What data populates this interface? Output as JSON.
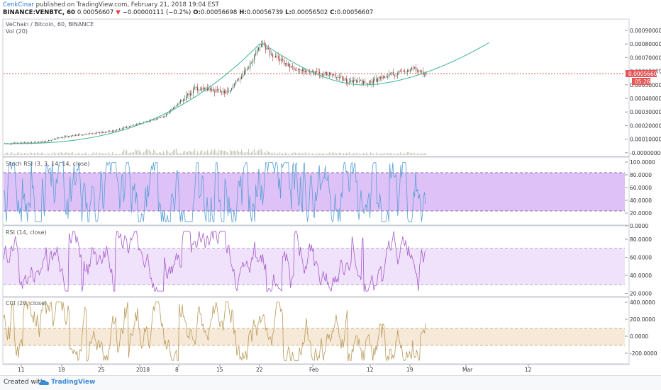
{
  "header": {
    "author": "CenkCinar",
    "published_text": "published on TradingView.com, February 21, 2018 19:04 EST",
    "symbol": "BINANCE:VENBTC, 60",
    "last": "0.00056607",
    "change": "−0.00000111 (−0.2%)",
    "ohlc": [
      {
        "k": "O:",
        "v": "0.00056698"
      },
      {
        "k": "H:",
        "v": "0.00056739"
      },
      {
        "k": "L:",
        "v": "0.00056502"
      },
      {
        "k": "C:",
        "v": "0.00056607"
      }
    ]
  },
  "panes": {
    "main_title": "VeChain / Bitcoin, 60, BINANCE",
    "vol_title": "Vol (20)",
    "stoch_title": "Stoch RSI (3, 3, 14, 14, close)",
    "rsi_title": "RSI (14, close)",
    "cci_title": "CCI (20, close)"
  },
  "price_axis": {
    "labels": [
      "0.00090000",
      "0.00080000",
      "0.00070000",
      "0.00060000",
      "0.00050000",
      "0.00040000",
      "0.00030000",
      "0.00020000",
      "0.00010000",
      "-0.00000000"
    ],
    "last_price_tag": "0.00056607",
    "countdown_tag": "05:26"
  },
  "stoch_axis": [
    "100.0000",
    "80.0000",
    "60.0000",
    "40.0000",
    "20.0000",
    "0.0000"
  ],
  "rsi_axis": [
    "80.0000",
    "60.0000",
    "40.0000",
    "20.0000"
  ],
  "cci_axis": [
    "400.0000",
    "200.0000",
    "0.0000",
    "-200.0000"
  ],
  "time_axis": [
    "11",
    "18",
    "25",
    "2018",
    "8",
    "15",
    "22",
    "Feb",
    "12",
    "19",
    "Mar",
    "12"
  ],
  "footer": {
    "created_text": "Created with",
    "brand": "TradingView"
  },
  "colors": {
    "candle_up": "#4a6a52",
    "candle_down": "#b04545",
    "curve": "#3fb497",
    "price_line": "#e25858",
    "stoch_band": "#d8b6f6",
    "stoch_line": "#5a9fd6",
    "rsi_band": "#f1e2fb",
    "rsi_line": "#a45bc9",
    "cci_band": "#f6e9d8",
    "cci_line": "#b89a5a"
  }
}
